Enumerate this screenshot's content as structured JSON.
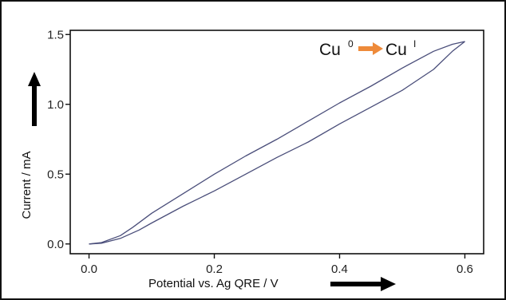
{
  "chart_data": {
    "type": "line",
    "xlabel": "Potential vs. Ag QRE / V",
    "ylabel": "Current / mA",
    "xlim": [
      -0.03,
      0.63
    ],
    "ylim": [
      -0.07,
      1.53
    ],
    "xticks": [
      "0.0",
      "0.2",
      "0.4",
      "0.6"
    ],
    "yticks": [
      "0.0",
      "0.5",
      "1.0",
      "1.5"
    ],
    "xtick_values": [
      0.0,
      0.2,
      0.4,
      0.6
    ],
    "ytick_values": [
      0.0,
      0.5,
      1.0,
      1.5
    ],
    "grid": false,
    "line_color": "#4a4e7a",
    "arrow_color": "#ee8a3a",
    "annotation": {
      "from_base": "Cu",
      "from_sup": "0",
      "to_base": "Cu",
      "to_sup": "I"
    },
    "series": [
      {
        "x": [
          0.0,
          0.02,
          0.05,
          0.08,
          0.1,
          0.15,
          0.2,
          0.25,
          0.3,
          0.35,
          0.4,
          0.45,
          0.5,
          0.55,
          0.58,
          0.6
        ],
        "y": [
          0.0,
          0.005,
          0.04,
          0.1,
          0.15,
          0.27,
          0.38,
          0.5,
          0.62,
          0.73,
          0.86,
          0.98,
          1.1,
          1.25,
          1.38,
          1.45
        ]
      },
      {
        "x": [
          0.6,
          0.58,
          0.55,
          0.5,
          0.45,
          0.4,
          0.35,
          0.3,
          0.25,
          0.2,
          0.15,
          0.1,
          0.07,
          0.05,
          0.02,
          0.0
        ],
        "y": [
          1.45,
          1.43,
          1.38,
          1.26,
          1.13,
          1.01,
          0.88,
          0.75,
          0.63,
          0.5,
          0.36,
          0.22,
          0.12,
          0.06,
          0.01,
          0.0
        ]
      }
    ]
  }
}
